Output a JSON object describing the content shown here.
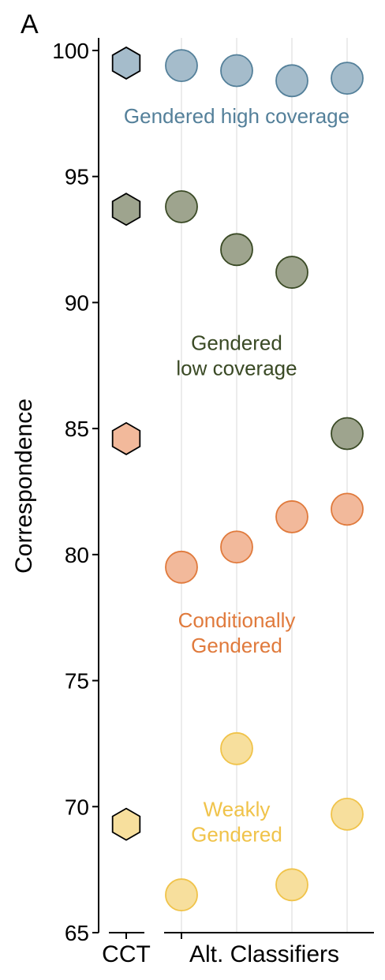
{
  "chart_data": {
    "type": "scatter",
    "panel_label": "A",
    "ylabel": "Correspondence",
    "ylim": [
      65,
      100.5
    ],
    "yticks": [
      65,
      70,
      75,
      80,
      85,
      90,
      95,
      100
    ],
    "xlabels": {
      "cct": "CCT",
      "alt": "Alt. Classifiers"
    },
    "grid": "vertical lines at alt classifier columns",
    "series": [
      {
        "label_lines": [
          "Gendered high coverage"
        ],
        "label_y": 97.4,
        "fill": "#a5bccb",
        "stroke": "#54809a",
        "label_color": "#54809a",
        "cct": 99.5,
        "alt": [
          99.4,
          99.2,
          98.8,
          98.9
        ]
      },
      {
        "label_lines": [
          "Gendered",
          "low coverage"
        ],
        "label_y": 87.9,
        "fill": "#9ea48e",
        "stroke": "#3a4a25",
        "label_color": "#3a4a25",
        "cct": 93.7,
        "alt": [
          93.8,
          92.1,
          91.2,
          84.8
        ]
      },
      {
        "label_lines": [
          "Conditionally",
          "Gendered"
        ],
        "label_y": 76.9,
        "fill": "#f2b99b",
        "stroke": "#e07a3c",
        "label_color": "#e07a3c",
        "cct": 84.6,
        "alt": [
          79.5,
          80.3,
          81.5,
          81.8
        ]
      },
      {
        "label_lines": [
          "Weakly",
          "Gendered"
        ],
        "label_y": 69.4,
        "fill": "#f7df9d",
        "stroke": "#f0c34a",
        "label_color": "#f0c34a",
        "cct": 69.3,
        "alt": [
          66.5,
          72.3,
          66.9,
          69.7
        ]
      }
    ]
  }
}
